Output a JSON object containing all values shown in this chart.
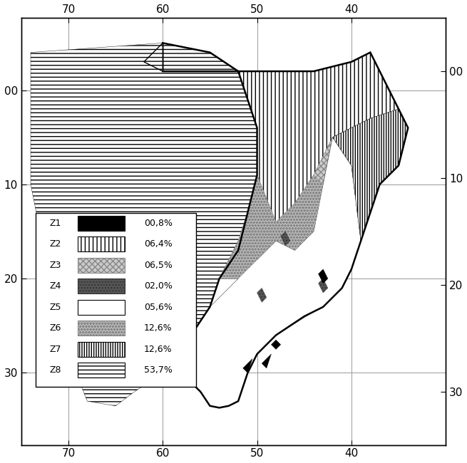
{
  "zones": [
    {
      "label": "Z1",
      "pct": "00,8%",
      "hatch": null,
      "facecolor": "#000000",
      "edgecolor": "#000000"
    },
    {
      "label": "Z2",
      "pct": "06,4%",
      "hatch": "|||",
      "facecolor": "#ffffff",
      "edgecolor": "#000000"
    },
    {
      "label": "Z3",
      "pct": "06,5%",
      "hatch": "xxxx",
      "facecolor": "#cccccc",
      "edgecolor": "#888888"
    },
    {
      "label": "Z4",
      "pct": "02,0%",
      "hatch": "....",
      "facecolor": "#555555",
      "edgecolor": "#333333"
    },
    {
      "label": "Z5",
      "pct": "05,6%",
      "hatch": "####",
      "facecolor": "#ffffff",
      "edgecolor": "#000000"
    },
    {
      "label": "Z6",
      "pct": "12,6%",
      "hatch": "oooo",
      "facecolor": "#aaaaaa",
      "edgecolor": "#888888"
    },
    {
      "label": "Z7",
      "pct": "12,6%",
      "hatch": "||||",
      "facecolor": "#ffffff",
      "edgecolor": "#000000"
    },
    {
      "label": "Z8",
      "pct": "53,7%",
      "hatch": "---",
      "facecolor": "#ffffff",
      "edgecolor": "#000000"
    }
  ],
  "xlim": [
    -75,
    -30
  ],
  "ylim": [
    -35,
    5
  ],
  "xticks": [
    -70,
    -60,
    -50,
    -40
  ],
  "yticks": [
    0,
    -10,
    -20,
    -30
  ],
  "xticklabels": [
    "70",
    "60",
    "50",
    "40"
  ],
  "yticklabels_left": [
    "00",
    "10",
    "20",
    "30"
  ],
  "yticklabels_right": [
    "00",
    "10",
    "20",
    "30"
  ],
  "grid_color": "#999999",
  "bg_color": "#ffffff"
}
